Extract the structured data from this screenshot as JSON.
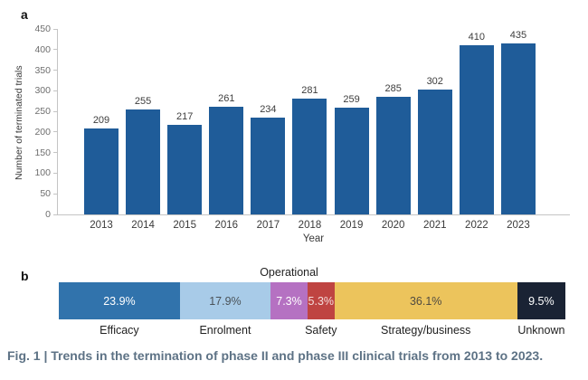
{
  "figure": {
    "panel_a_label": "a",
    "panel_b_label": "b",
    "caption": "Fig. 1 | Trends in the termination of phase II and phase III clinical trials from 2013 to 2023."
  },
  "colors": {
    "bar_blue": "#1f5c99",
    "axis_line": "#c4c4c4",
    "tick_label": "#6e6e6e",
    "value_label": "#3d3d3d",
    "caption_text": "#5d7285"
  },
  "chart_data": [
    {
      "type": "bar",
      "title": "",
      "xlabel": "Year",
      "ylabel": "Number of terminated trials",
      "categories": [
        "2013",
        "2014",
        "2015",
        "2016",
        "2017",
        "2018",
        "2019",
        "2020",
        "2021",
        "2022",
        "2023"
      ],
      "values": [
        209,
        255,
        217,
        261,
        234,
        281,
        259,
        285,
        302,
        410,
        435
      ],
      "ylim": [
        0,
        450
      ],
      "yticks": [
        0,
        50,
        100,
        150,
        200,
        250,
        300,
        350,
        400,
        450
      ],
      "grid": false,
      "legend": "none",
      "bar_color": "#1f5c99"
    },
    {
      "type": "bar",
      "subtype": "stacked-horizontal-percentage",
      "title": "",
      "segments": [
        {
          "label": "Efficacy",
          "value_pct": 23.9,
          "display": "23.9%",
          "color": "#3173ac",
          "text_color": "#ffffff",
          "label_position": "below"
        },
        {
          "label": "Enrolment",
          "value_pct": 17.9,
          "display": "17.9%",
          "color": "#a8cbe8",
          "text_color": "#4a5258",
          "label_position": "below"
        },
        {
          "label": "Operational",
          "value_pct": 7.3,
          "display": "7.3%",
          "color": "#b571c2",
          "text_color": "#ffffff",
          "label_position": "above"
        },
        {
          "label": "Safety",
          "value_pct": 5.3,
          "display": "5.3%",
          "color": "#bf4441",
          "text_color": "#f3dddb",
          "label_position": "below"
        },
        {
          "label": "Strategy/business",
          "value_pct": 36.1,
          "display": "36.1%",
          "color": "#ecc45c",
          "text_color": "#504b41",
          "label_position": "below"
        },
        {
          "label": "Unknown",
          "value_pct": 9.5,
          "display": "9.5%",
          "color": "#1a2334",
          "text_color": "#ffffff",
          "label_position": "below"
        }
      ]
    }
  ]
}
